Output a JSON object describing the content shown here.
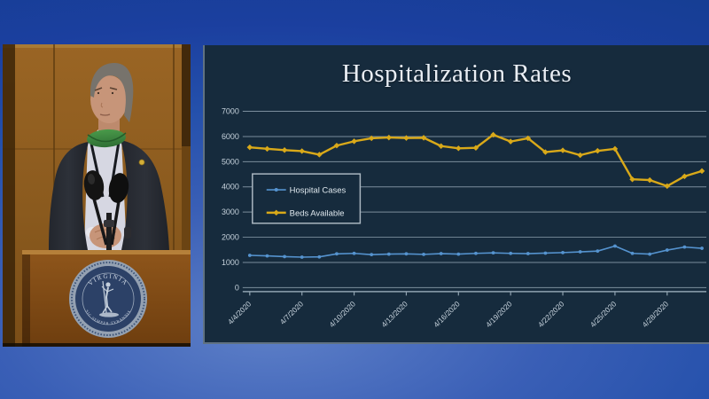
{
  "scene": {
    "video_panel": {
      "seal": {
        "top_text": "VIRGINIA",
        "bottom_text": "SIC SEMPER TYRANNIS"
      }
    }
  },
  "chart_data": {
    "type": "line",
    "title": "Hospitalization Rates",
    "x": [
      "4/4/2020",
      "4/5/2020",
      "4/6/2020",
      "4/7/2020",
      "4/8/2020",
      "4/9/2020",
      "4/10/2020",
      "4/11/2020",
      "4/12/2020",
      "4/13/2020",
      "4/14/2020",
      "4/15/2020",
      "4/16/2020",
      "4/17/2020",
      "4/18/2020",
      "4/19/2020",
      "4/20/2020",
      "4/21/2020",
      "4/22/2020",
      "4/23/2020",
      "4/24/2020",
      "4/25/2020",
      "4/26/2020",
      "4/27/2020",
      "4/28/2020",
      "4/29/2020",
      "4/30/2020"
    ],
    "x_tick_labels": [
      "4/4/2020",
      "4/7/2020",
      "4/10/2020",
      "4/13/2020",
      "4/16/2020",
      "4/19/2020",
      "4/22/2020",
      "4/25/2020",
      "4/28/2020"
    ],
    "xlabel": "",
    "ylabel": "",
    "ylim": [
      0,
      7000
    ],
    "ytick_interval": 1000,
    "grid": true,
    "legend_position": "upper-left-inside",
    "series": [
      {
        "name": "Hospital Cases",
        "color": "#5593cf",
        "marker": "dot",
        "values": [
          1280,
          1260,
          1230,
          1210,
          1220,
          1340,
          1360,
          1310,
          1330,
          1340,
          1320,
          1350,
          1330,
          1360,
          1380,
          1360,
          1350,
          1370,
          1390,
          1420,
          1450,
          1650,
          1360,
          1330,
          1490,
          1610,
          1560
        ]
      },
      {
        "name": "Beds Available",
        "color": "#d9a919",
        "marker": "diamond",
        "values": [
          5570,
          5510,
          5460,
          5420,
          5280,
          5640,
          5810,
          5930,
          5960,
          5940,
          5950,
          5620,
          5530,
          5550,
          6070,
          5800,
          5930,
          5380,
          5450,
          5260,
          5430,
          5510,
          4300,
          4270,
          4030,
          4420,
          4630
        ]
      }
    ]
  },
  "colors": {
    "backdrop_light_blue": "#5e80c8",
    "backdrop_deep_blue": "#163e94",
    "chart_background": "#162b3d",
    "gridline": "#9db0bd",
    "axis_text": "#c6d2dc",
    "title_text": "#e9eef5",
    "legend_border": "#a9b6c0",
    "wood_panel": "#8a5a1e",
    "podium_wood": "#7c4a15",
    "suit": "#262a31",
    "shirt": "#d6d7e2",
    "mask_green": "#3f8f3f",
    "seal_blue": "#2c4167",
    "seal_ring": "#94a1b2"
  }
}
